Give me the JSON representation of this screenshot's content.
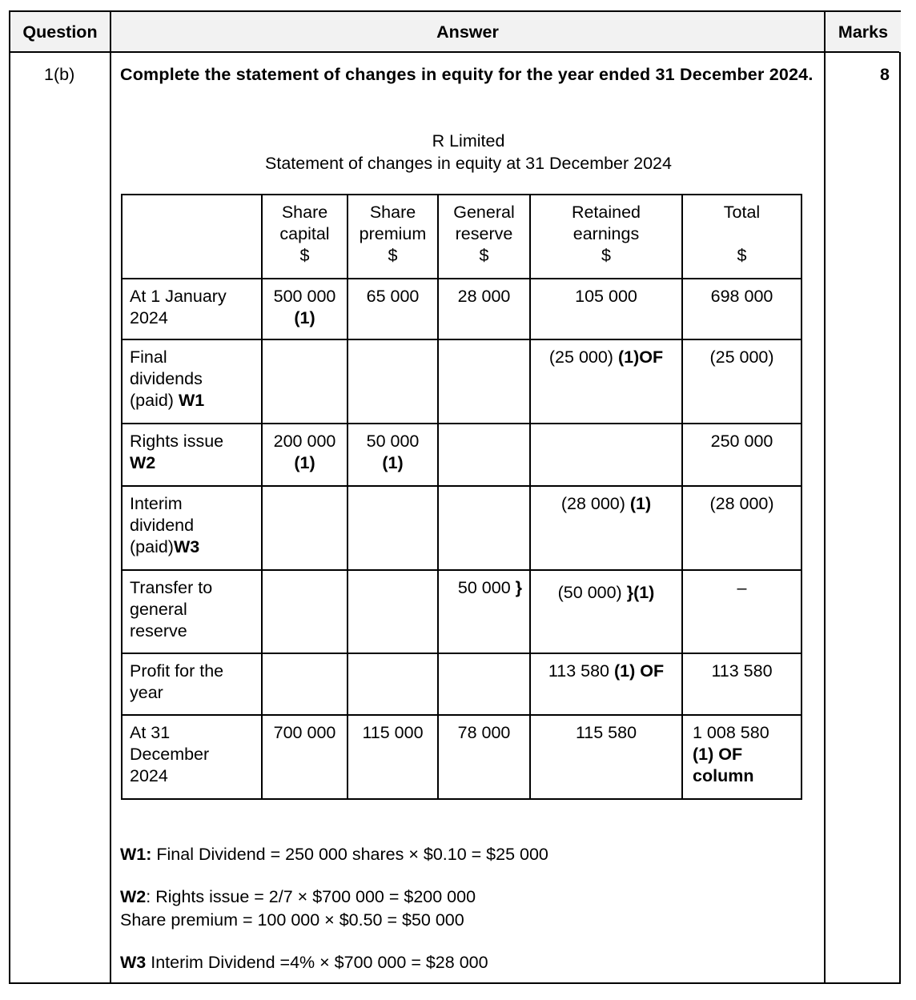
{
  "header": {
    "question": "Question",
    "answer": "Answer",
    "marks": "Marks"
  },
  "question_number": "1(b)",
  "marks_value": "8",
  "instruction": "Complete the statement of changes in equity for the year ended 31 December 2024.",
  "statement": {
    "company": "R Limited",
    "title": "Statement of changes in equity at 31 December 2024"
  },
  "table": {
    "columns": [
      [],
      [
        {
          "t": "Share"
        },
        {
          "t": "capital"
        },
        {
          "t": "$"
        }
      ],
      [
        {
          "t": "Share"
        },
        {
          "t": "premium"
        },
        {
          "t": "$"
        }
      ],
      [
        {
          "t": "General"
        },
        {
          "t": "reserve"
        },
        {
          "t": "$"
        }
      ],
      [
        {
          "t": "Retained"
        },
        {
          "t": "earnings"
        },
        {
          "t": "$"
        }
      ],
      [
        {
          "t": "Total"
        },
        {
          "t": ""
        },
        {
          "t": "$"
        }
      ]
    ],
    "rows": [
      [
        [
          [
            {
              "t": "At 1 January"
            }
          ],
          [
            {
              "t": "2024"
            }
          ]
        ],
        [
          [
            {
              "t": "500 000"
            }
          ],
          [
            {
              "t": "(1)",
              "b": true
            }
          ]
        ],
        [
          [
            {
              "t": "65 000"
            }
          ]
        ],
        [
          [
            {
              "t": "28 000"
            }
          ]
        ],
        [
          [
            {
              "t": "105 000"
            }
          ]
        ],
        [
          [
            {
              "t": "698 000"
            }
          ]
        ]
      ],
      [
        [
          [
            {
              "t": "Final"
            }
          ],
          [
            {
              "t": "dividends"
            }
          ],
          [
            {
              "t": "(paid) "
            },
            {
              "t": "W1",
              "b": true
            }
          ]
        ],
        [],
        [],
        [],
        [
          [
            {
              "t": "(25 000) "
            },
            {
              "t": "(1)OF",
              "b": true
            }
          ]
        ],
        [
          [
            {
              "t": "(25 000)"
            }
          ]
        ]
      ],
      [
        [
          [
            {
              "t": "Rights issue"
            }
          ],
          [
            {
              "t": "W2",
              "b": true
            }
          ]
        ],
        [
          [
            {
              "t": "200 000"
            }
          ],
          [
            {
              "t": "(1)",
              "b": true
            }
          ]
        ],
        [
          [
            {
              "t": "50 000"
            }
          ],
          [
            {
              "t": "(1)",
              "b": true
            }
          ]
        ],
        [],
        [],
        [
          [
            {
              "t": "250 000"
            }
          ]
        ]
      ],
      [
        [
          [
            {
              "t": "Interim"
            }
          ],
          [
            {
              "t": "dividend"
            }
          ],
          [
            {
              "t": "(paid)"
            },
            {
              "t": "W3",
              "b": true
            }
          ]
        ],
        [],
        [],
        [],
        [
          [
            {
              "t": "(28 000) "
            },
            {
              "t": "(1)",
              "b": true
            }
          ]
        ],
        [
          [
            {
              "t": "(28 000)"
            }
          ]
        ]
      ],
      [
        [
          [
            {
              "t": "Transfer to"
            }
          ],
          [
            {
              "t": "general"
            }
          ],
          [
            {
              "t": "reserve"
            }
          ]
        ],
        [],
        [],
        [
          [
            {
              "t": "50 000 "
            },
            {
              "t": "}",
              "b": true
            }
          ]
        ],
        [
          [
            {
              "t": "(50 000) "
            },
            {
              "t": "}(1)",
              "b": true
            }
          ]
        ],
        [
          [
            {
              "t": "–"
            }
          ]
        ]
      ],
      [
        [
          [
            {
              "t": "Profit for the"
            }
          ],
          [
            {
              "t": "year"
            }
          ]
        ],
        [],
        [],
        [],
        [
          [
            {
              "t": "113 580 "
            },
            {
              "t": "(1) OF",
              "b": true
            }
          ]
        ],
        [
          [
            {
              "t": "113 580"
            }
          ]
        ]
      ],
      [
        [
          [
            {
              "t": "At 31"
            }
          ],
          [
            {
              "t": "December"
            }
          ],
          [
            {
              "t": "2024"
            }
          ]
        ],
        [
          [
            {
              "t": "700 000"
            }
          ]
        ],
        [
          [
            {
              "t": "115 000"
            }
          ]
        ],
        [
          [
            {
              "t": "78 000"
            }
          ]
        ],
        [
          [
            {
              "t": "115 580"
            }
          ]
        ],
        [
          [
            {
              "t": "1 008 580"
            }
          ],
          [
            {
              "t": "(1) OF",
              "b": true
            }
          ],
          [
            {
              "t": "column",
              "b": true
            }
          ]
        ]
      ]
    ]
  },
  "workings": [
    [
      [
        {
          "t": "W1:",
          "b": true
        },
        {
          "t": " Final Dividend = 250 000 shares × $0.10 = $25 000"
        }
      ]
    ],
    [
      [
        {
          "t": "W2",
          "b": true
        },
        {
          "t": ": Rights issue = 2/7 × $700 000 = $200 000"
        }
      ],
      [
        {
          "t": "Share premium = 100 000 × $0.50 = $50 000"
        }
      ]
    ],
    [
      [
        {
          "t": "W3",
          "b": true
        },
        {
          "t": " Interim Dividend =4% × $700 000 = $28 000"
        }
      ]
    ]
  ]
}
